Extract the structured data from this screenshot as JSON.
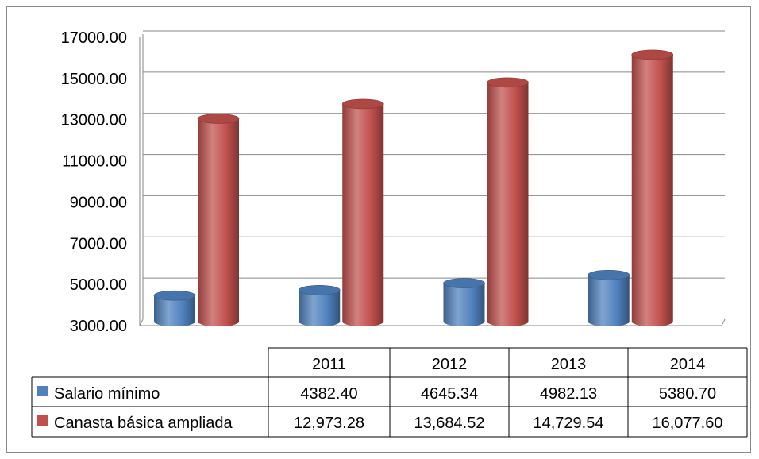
{
  "chart_data": {
    "type": "bar",
    "categories": [
      "2011",
      "2012",
      "2013",
      "2014"
    ],
    "series": [
      {
        "name": "Salario mínimo",
        "values": [
          4382.4,
          4645.34,
          4982.13,
          5380.7
        ],
        "labels": [
          "4382.40",
          "4645.34",
          "4982.13",
          "5380.70"
        ],
        "color": "#4f81bd"
      },
      {
        "name": "Canasta básica ampliada",
        "values": [
          12973.28,
          13684.52,
          14729.54,
          16077.6
        ],
        "labels": [
          "12,973.28",
          "13,684.52",
          "14,729.54",
          "16,077.60"
        ],
        "color": "#c0504d"
      }
    ],
    "yticks": [
      "3000.00",
      "5000.00",
      "7000.00",
      "9000.00",
      "11000.00",
      "13000.00",
      "15000.00",
      "17000.00"
    ],
    "ylim": [
      3000,
      17000
    ],
    "grid": true,
    "legend": "data-table",
    "title": "",
    "xlabel": "",
    "ylabel": ""
  }
}
